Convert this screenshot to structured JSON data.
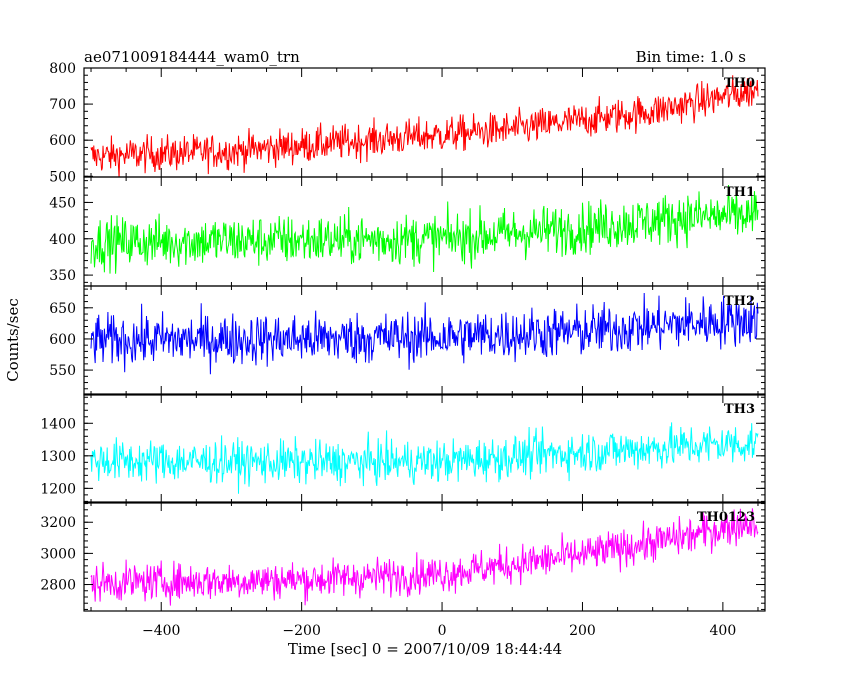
{
  "chart_data": {
    "type": "line",
    "title": "ae071009184444_wam0_trn",
    "bin_time_label": "Bin time: 1.0 s",
    "xlabel": "Time [sec] 0 = 2007/10/09 18:44:44",
    "ylabel": "Counts/sec",
    "xlim": [
      -510,
      460
    ],
    "xticks": [
      -400,
      -200,
      0,
      200,
      400
    ],
    "x_range": [
      -500,
      450
    ],
    "panels": [
      {
        "name": "TH0",
        "color": "#ff0000",
        "ylim": [
          498,
          800
        ],
        "yticks": [
          500,
          600,
          700,
          800
        ],
        "trend": [
          [
            -500,
            555
          ],
          [
            -300,
            570
          ],
          [
            -100,
            600
          ],
          [
            100,
            630
          ],
          [
            300,
            680
          ],
          [
            450,
            740
          ]
        ],
        "noise": 45
      },
      {
        "name": "TH1",
        "color": "#00ff00",
        "ylim": [
          335,
          485
        ],
        "yticks": [
          350,
          400,
          450
        ],
        "trend": [
          [
            -500,
            395
          ],
          [
            -200,
            398
          ],
          [
            0,
            400
          ],
          [
            200,
            415
          ],
          [
            350,
            430
          ],
          [
            450,
            432
          ]
        ],
        "noise": 32
      },
      {
        "name": "TH2",
        "color": "#0000ff",
        "ylim": [
          510,
          685
        ],
        "yticks": [
          550,
          600,
          650
        ],
        "trend": [
          [
            -500,
            598
          ],
          [
            -200,
            600
          ],
          [
            0,
            603
          ],
          [
            200,
            612
          ],
          [
            350,
            625
          ],
          [
            450,
            632
          ]
        ],
        "noise": 38
      },
      {
        "name": "TH3",
        "color": "#00ffff",
        "ylim": [
          1155,
          1490
        ],
        "yticks": [
          1200,
          1300,
          1400
        ],
        "trend": [
          [
            -500,
            1285
          ],
          [
            -200,
            1280
          ],
          [
            0,
            1282
          ],
          [
            150,
            1305
          ],
          [
            350,
            1330
          ],
          [
            450,
            1340
          ]
        ],
        "noise": 60
      },
      {
        "name": "TH0123",
        "color": "#ff00ff",
        "ylim": [
          2630,
          3330
        ],
        "yticks": [
          2800,
          3000,
          3200
        ],
        "trend": [
          [
            -500,
            2810
          ],
          [
            -200,
            2830
          ],
          [
            0,
            2870
          ],
          [
            200,
            2990
          ],
          [
            350,
            3110
          ],
          [
            450,
            3210
          ]
        ],
        "noise": 110
      }
    ]
  }
}
